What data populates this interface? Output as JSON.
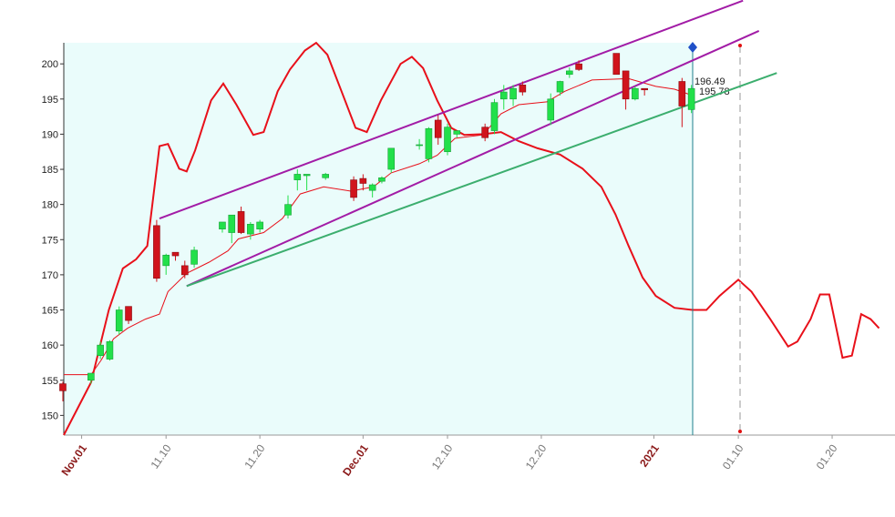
{
  "chart_data": {
    "type": "candlestick",
    "xlim": [
      -1.9,
      86.7
    ],
    "ylim": [
      147.2,
      203
    ],
    "yticks": [
      150,
      155,
      160,
      165,
      170,
      175,
      180,
      185,
      190,
      195,
      200
    ],
    "xticks": [
      {
        "value": 0,
        "label": "Nov.01"
      },
      {
        "value": 9,
        "label": "11.10"
      },
      {
        "value": 19,
        "label": "11.20"
      },
      {
        "value": 30,
        "label": "Dec.01"
      },
      {
        "value": 39,
        "label": "12.10"
      },
      {
        "value": 49,
        "label": "12.20"
      },
      {
        "value": 61,
        "label": "2021"
      },
      {
        "value": 70,
        "label": "01.10"
      },
      {
        "value": 80,
        "label": "01.20"
      }
    ],
    "up_color": "#22e04a",
    "down_color": "#d0141c",
    "x": [
      -2,
      1,
      2,
      3,
      4,
      5,
      8,
      9,
      10,
      11,
      12,
      15,
      16,
      17,
      18,
      19,
      22,
      23,
      24,
      26,
      29,
      30,
      31,
      32,
      33,
      36,
      37,
      38,
      39,
      40,
      43,
      44,
      45,
      46,
      47,
      50,
      51,
      52,
      53,
      57,
      58,
      59,
      60,
      64,
      65
    ],
    "open": [
      154.5,
      155,
      158.5,
      158,
      162,
      165.5,
      177,
      171.3,
      173.2,
      171.3,
      171.5,
      176.5,
      176,
      179,
      175.8,
      176.5,
      178.5,
      183.5,
      184.1,
      183.8,
      183.5,
      183.7,
      182,
      183.3,
      185,
      188.5,
      186.5,
      192,
      187.5,
      190,
      191,
      190.5,
      195,
      195,
      197,
      192,
      196,
      198.5,
      200,
      201.5,
      199,
      195,
      196.5,
      197.5,
      193.5
    ],
    "close": [
      153.5,
      156,
      160,
      160.5,
      165,
      163.5,
      169.5,
      172.8,
      172.7,
      170,
      173.5,
      177.5,
      178.5,
      176,
      177.2,
      177.5,
      180,
      184.3,
      184.3,
      184.3,
      181,
      183,
      182.8,
      183.8,
      188,
      188.5,
      190.8,
      189.5,
      191,
      190.5,
      189.5,
      194.5,
      196,
      196.5,
      196,
      195,
      197.5,
      199,
      199.2,
      198.5,
      195,
      196.5,
      196.3,
      194,
      196.5
    ],
    "high": [
      154.8,
      156,
      160.5,
      160.7,
      165.5,
      165.5,
      177.8,
      173,
      173.2,
      172,
      174,
      177.5,
      178.5,
      179.7,
      177.5,
      177.8,
      181.3,
      185,
      184.3,
      184.5,
      184,
      184.3,
      183,
      184,
      188,
      189.3,
      191,
      192.7,
      191.5,
      190.5,
      191.5,
      195,
      197,
      197,
      197.5,
      195.8,
      197.6,
      199.5,
      200.5,
      201.5,
      199,
      196.8,
      196.5,
      198,
      197
    ],
    "low": [
      152,
      154.5,
      158,
      157.8,
      161.5,
      163,
      169,
      170,
      172,
      169.5,
      171,
      176,
      174.5,
      175.8,
      175,
      176,
      178,
      182,
      182,
      183.5,
      180.5,
      182,
      181,
      183,
      184.5,
      187.8,
      186,
      188.5,
      187,
      189.5,
      189,
      190,
      193.5,
      194,
      195.5,
      191.3,
      195.5,
      198,
      199,
      198.5,
      193.5,
      194.8,
      195.5,
      191,
      193
    ],
    "overlays": [
      {
        "color": "#e8101a",
        "width": 2,
        "x": [
          -1.9,
          1.0,
          2.9,
          4.4,
          5.8,
          7.0,
          8.3,
          9.2,
          10.4,
          11.2,
          12.1,
          13.8,
          15.1,
          16.5,
          18.3,
          19.4,
          20.9,
          22.2,
          23.8,
          25.0,
          26.2,
          27.7,
          29.2,
          30.4,
          31.9,
          34.0,
          35.2,
          36.4,
          37.9,
          39.4,
          40.8,
          42.8,
          44.7,
          46.6,
          48.6,
          51.0,
          53.4,
          55.4,
          56.9,
          58.3,
          59.8,
          61.2,
          63.2,
          65.1,
          66.6,
          68.0,
          70.0,
          71.4,
          73.4,
          75.3,
          76.3,
          77.7,
          78.7,
          79.7,
          81.1,
          82.1,
          83.1,
          84.1,
          85.0
        ],
        "values": [
          147.2,
          154.7,
          165.0,
          170.9,
          172.2,
          174.1,
          188.3,
          188.6,
          185.1,
          184.7,
          187.7,
          194.8,
          197.2,
          194.2,
          189.9,
          190.3,
          196.1,
          199.2,
          201.9,
          203.0,
          201.3,
          196.1,
          190.9,
          190.3,
          194.8,
          200.0,
          201.0,
          199.4,
          194.8,
          190.9,
          189.9,
          190.0,
          190.3,
          189.0,
          188.0,
          187.1,
          185.1,
          182.5,
          178.6,
          174.1,
          169.6,
          167.0,
          165.3,
          165.0,
          165.0,
          167.0,
          169.3,
          167.6,
          163.7,
          159.8,
          160.5,
          163.7,
          167.2,
          167.2,
          158.2,
          158.5,
          164.4,
          163.7,
          162.4
        ]
      },
      {
        "color": "#e8101a",
        "width": 1,
        "x": [
          -1.9,
          1.0,
          2.1,
          3.4,
          4.9,
          6.8,
          8.3,
          9.2,
          11.2,
          13.6,
          15.6,
          16.7,
          19.4,
          21.4,
          23.3,
          25.8,
          28.7,
          31.1,
          33.0,
          36.0,
          37.9,
          39.8,
          42.8,
          44.7,
          46.6,
          49.6,
          51.5,
          54.4,
          58.3,
          61.2,
          63.2,
          65.1
        ],
        "values": [
          155.8,
          155.8,
          157.9,
          160.9,
          162.4,
          163.7,
          164.4,
          167.6,
          170.2,
          171.8,
          173.4,
          175.1,
          176.0,
          178.0,
          181.5,
          182.5,
          181.9,
          182.5,
          184.5,
          185.8,
          187.0,
          189.4,
          189.9,
          192.9,
          194.2,
          194.6,
          196.1,
          197.7,
          197.9,
          196.8,
          196.4,
          195.5
        ]
      }
    ],
    "trendlines": [
      {
        "color": "#a21ca6",
        "x": [
          8.3,
          70.5
        ],
        "values": [
          178.0,
          209.0
        ]
      },
      {
        "color": "#a21ca6",
        "x": [
          11.2,
          72.2
        ],
        "values": [
          168.4,
          204.7
        ]
      },
      {
        "color": "#3cae6e",
        "x": [
          11.2,
          74.1
        ],
        "values": [
          168.4,
          198.7
        ]
      }
    ],
    "annotations": [
      "196.49",
      "195.78"
    ]
  }
}
